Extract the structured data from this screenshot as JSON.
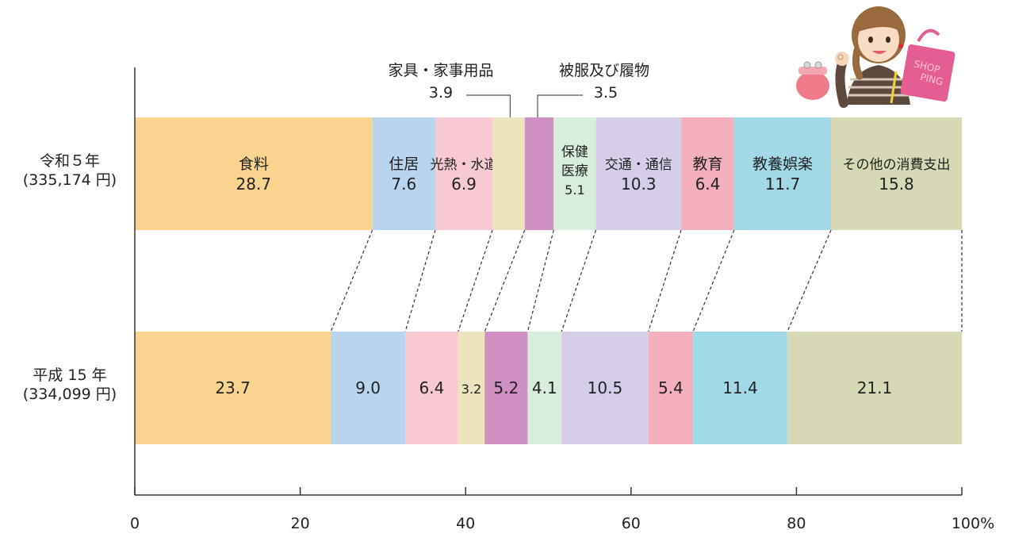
{
  "chart_data": {
    "type": "bar",
    "orientation": "horizontal",
    "stacked": true,
    "normalized_percent": true,
    "xlim": [
      0,
      100
    ],
    "xticks": [
      "0",
      "20",
      "40",
      "60",
      "80",
      "100%"
    ],
    "grid": false,
    "rows": [
      {
        "label": "令和５年",
        "sublabel": "(335,174 円)"
      },
      {
        "label": "平成 15 年",
        "sublabel": "(334,099 円)"
      }
    ],
    "categories": [
      {
        "name": "食料",
        "color": "#FAD48E",
        "values": [
          28.7,
          23.7
        ]
      },
      {
        "name": "住居",
        "color": "#B9D4EF",
        "values": [
          7.6,
          9.0
        ]
      },
      {
        "name": "光熱・水道",
        "color": "#F7C9D2",
        "values": [
          6.9,
          6.4
        ]
      },
      {
        "name": "家具・家事用品",
        "color": "#ECE3BF",
        "values": [
          3.9,
          3.2
        ]
      },
      {
        "name": "被服及び履物",
        "color": "#CF90C2",
        "values": [
          3.5,
          5.2
        ]
      },
      {
        "name": "保健医療",
        "color": "#D9EDDC",
        "values": [
          5.1,
          4.1
        ]
      },
      {
        "name": "交通・通信",
        "color": "#D6CEE8",
        "values": [
          10.3,
          10.5
        ]
      },
      {
        "name": "教育",
        "color": "#F4AFBD",
        "values": [
          6.4,
          5.4
        ]
      },
      {
        "name": "教養娯楽",
        "color": "#A2D9E6",
        "values": [
          11.7,
          11.4
        ]
      },
      {
        "name": "その他の消費支出",
        "color": "#D6D8B6",
        "values": [
          15.8,
          21.1
        ]
      }
    ],
    "top_value_labels": [
      "28.7",
      "7.6",
      "6.9",
      "3.9",
      "3.5",
      "5.1",
      "10.3",
      "6.4",
      "11.7",
      "15.8"
    ],
    "bottom_value_labels": [
      "23.7",
      "9.0",
      "6.4",
      "3.2",
      "5.2",
      "4.1",
      "10.5",
      "5.4",
      "11.4",
      "21.1"
    ],
    "callouts": [
      {
        "category": "家具・家事用品",
        "label": "家具・家事用品",
        "value": "3.9"
      },
      {
        "category": "被服及び履物",
        "label": "被服及び履物",
        "value": "3.5"
      }
    ]
  },
  "illustration": {
    "bag_text_1": "SHOP",
    "bag_text_2": "PING"
  }
}
